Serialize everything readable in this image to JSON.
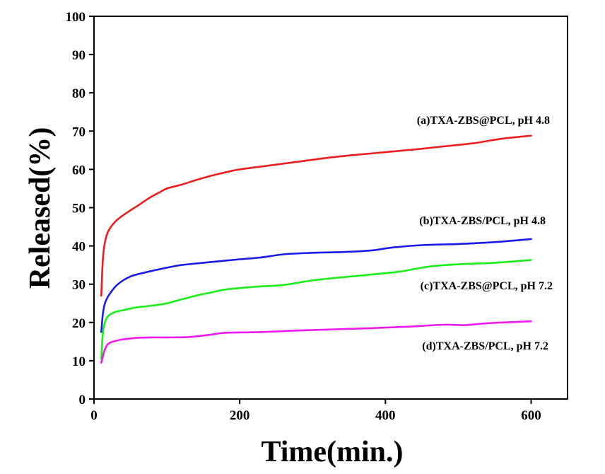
{
  "chart_data": {
    "type": "line",
    "title": "",
    "xlabel": "Time(min.)",
    "ylabel": "Released(%)",
    "xlim": [
      0,
      650
    ],
    "ylim": [
      0,
      100
    ],
    "xticks": [
      0,
      200,
      400,
      600
    ],
    "yticks": [
      0,
      10,
      20,
      30,
      40,
      50,
      60,
      70,
      80,
      90,
      100
    ],
    "grid": false,
    "series": [
      {
        "name": "(a)TXA-ZBS@PCL, pH 4.8",
        "color": "#ee1c1c",
        "x": [
          10,
          12,
          15,
          20,
          30,
          40,
          50,
          60,
          70,
          80,
          90,
          100,
          120,
          140,
          160,
          180,
          200,
          240,
          280,
          320,
          360,
          400,
          440,
          480,
          520,
          560,
          600
        ],
        "y": [
          27,
          36,
          41,
          44,
          46.5,
          48,
          49.3,
          50.5,
          51.8,
          53,
          54,
          55,
          56,
          57.2,
          58.3,
          59.2,
          60,
          61,
          62,
          63,
          63.8,
          64.5,
          65.2,
          66,
          66.8,
          68,
          68.8
        ]
      },
      {
        "name": "(b)TXA-ZBS/PCL, pH 4.8",
        "color": "#1a1aee",
        "x": [
          10,
          12,
          15,
          20,
          30,
          40,
          50,
          60,
          80,
          100,
          120,
          150,
          200,
          230,
          260,
          300,
          340,
          380,
          410,
          450,
          500,
          550,
          600
        ],
        "y": [
          17.5,
          22,
          25,
          27,
          29.5,
          31,
          32,
          32.6,
          33.5,
          34.3,
          35,
          35.6,
          36.5,
          37,
          37.8,
          38.2,
          38.4,
          38.8,
          39.6,
          40.2,
          40.5,
          41,
          41.8
        ]
      },
      {
        "name": "(c)TXA-ZBS@PCL, pH 7.2",
        "color": "#19ee19",
        "x": [
          10,
          12,
          15,
          20,
          30,
          40,
          60,
          80,
          100,
          120,
          140,
          160,
          180,
          220,
          260,
          300,
          340,
          380,
          420,
          460,
          500,
          550,
          600
        ],
        "y": [
          10.5,
          17,
          20,
          21.8,
          22.8,
          23.2,
          24,
          24.4,
          25,
          26,
          27,
          27.8,
          28.6,
          29.3,
          29.8,
          31,
          31.8,
          32.5,
          33.3,
          34.6,
          35.2,
          35.6,
          36.3
        ]
      },
      {
        "name": "(d)TXA-ZBS/PCL, pH 7.2",
        "color": "#ee19ee",
        "x": [
          10,
          12,
          15,
          20,
          30,
          40,
          50,
          60,
          80,
          100,
          130,
          160,
          180,
          230,
          280,
          330,
          380,
          430,
          480,
          510,
          540,
          600
        ],
        "y": [
          9.5,
          11,
          13,
          14.5,
          15.2,
          15.6,
          15.8,
          16,
          16.1,
          16.1,
          16.2,
          16.8,
          17.3,
          17.5,
          17.9,
          18.2,
          18.5,
          18.9,
          19.4,
          19.3,
          19.8,
          20.3
        ]
      }
    ]
  }
}
